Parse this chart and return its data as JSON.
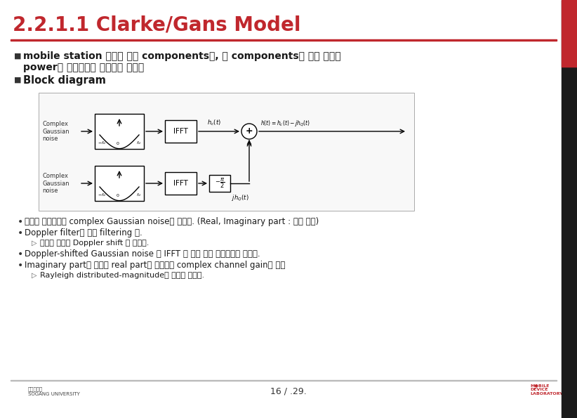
{
  "title": "2.2.1.1 Clarke/Gans Model",
  "title_color": "#C0272D",
  "bg_color": "#FFFFFF",
  "red_bar_color": "#C0272D",
  "black_bar_color": "#1A1A1A",
  "footer_page": "16 / .29.",
  "bullet1_line1": "mobile station 주변의 산란 components가, 각 components에 대해 동일한",
  "bullet1_line2": "power로 분배된다는 가정하에 고안됨",
  "bullet2": "Block diagram",
  "bp1": "주파수 도메인에서 complex Gaussian noise가 생성됨. (Real, Imaginary part : 켤레 대칭)",
  "bp2": "Doppler filter에 의해 filtering 됨.",
  "bp2sub": "주파수 성분이 Doppler shift 가 적용됨.",
  "bp3": "Doppler-shifted Gaussian noise 는 IFFT 를 통해 시간 도메인으로 변환됨.",
  "bp4": "Imaginary part의 출력에 real part를 추가하여 complex channel gain을 구성",
  "bp4sub": "Rayleigh distributed-magnitude의 시널이 생성됨."
}
